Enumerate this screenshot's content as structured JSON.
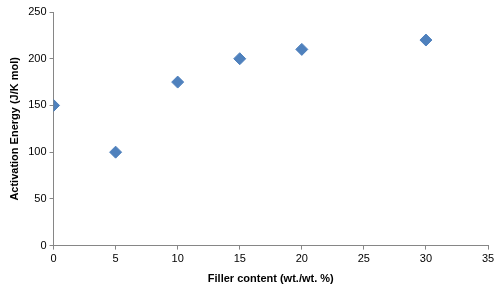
{
  "chart_data": {
    "type": "scatter",
    "x_label": "Filler content (wt./wt. %)",
    "y_label": "Activation Energy (J/K mol)",
    "x": [
      0,
      5,
      10,
      15,
      20,
      30
    ],
    "values": [
      150,
      100,
      175,
      200,
      210,
      220
    ],
    "color": "#4f81bd",
    "marker": "diamond",
    "xlim": [
      0,
      35
    ],
    "xticks": [
      0,
      5,
      10,
      15,
      20,
      25,
      30,
      35
    ],
    "ylim": [
      0,
      250
    ],
    "yticks": [
      0,
      50,
      100,
      150,
      200,
      250
    ],
    "grid": false
  }
}
